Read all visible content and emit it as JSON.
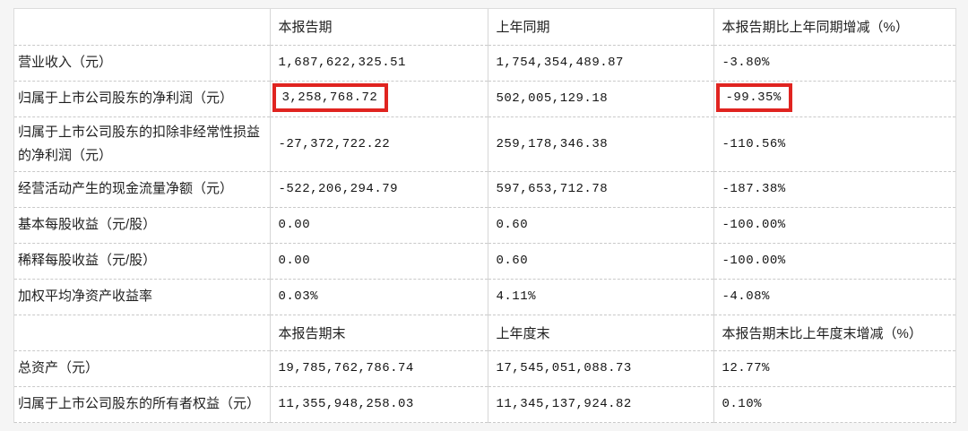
{
  "colors": {
    "page_background": "#f5f5f5",
    "table_background": "#ffffff",
    "grid_line": "#cccccc",
    "text": "#1f1f1f",
    "highlight_box": "#e02420"
  },
  "table": {
    "rows": [
      {
        "type": "header",
        "cells": [
          "",
          "本报告期",
          "上年同期",
          "本报告期比上年同期增减（%）"
        ]
      },
      {
        "type": "data",
        "cells": [
          "营业收入（元）",
          "1,687,622,325.51",
          "1,754,354,489.87",
          "-3.80%"
        ]
      },
      {
        "type": "data",
        "highlighted_cells": [
          1,
          3
        ],
        "cells": [
          "归属于上市公司股东的净利润（元）",
          "3,258,768.72",
          "502,005,129.18",
          "-99.35%"
        ]
      },
      {
        "type": "data",
        "cells": [
          "归属于上市公司股东的扣除非经常性损益的净利润（元）",
          "-27,372,722.22",
          "259,178,346.38",
          "-110.56%"
        ]
      },
      {
        "type": "data",
        "cells": [
          "经营活动产生的现金流量净额（元）",
          "-522,206,294.79",
          "597,653,712.78",
          "-187.38%"
        ]
      },
      {
        "type": "data",
        "cells": [
          "基本每股收益（元/股）",
          "0.00",
          "0.60",
          "-100.00%"
        ]
      },
      {
        "type": "data",
        "cells": [
          "稀释每股收益（元/股）",
          "0.00",
          "0.60",
          "-100.00%"
        ]
      },
      {
        "type": "data",
        "cells": [
          "加权平均净资产收益率",
          "0.03%",
          "4.11%",
          "-4.08%"
        ]
      },
      {
        "type": "header",
        "cells": [
          "",
          "本报告期末",
          "上年度末",
          "本报告期末比上年度末增减（%）"
        ]
      },
      {
        "type": "data",
        "cells": [
          "总资产（元）",
          "19,785,762,786.74",
          "17,545,051,088.73",
          "12.77%"
        ]
      },
      {
        "type": "data",
        "cells": [
          "归属于上市公司股东的所有者权益（元）",
          "11,355,948,258.03",
          "11,345,137,924.82",
          "0.10%"
        ]
      }
    ]
  }
}
